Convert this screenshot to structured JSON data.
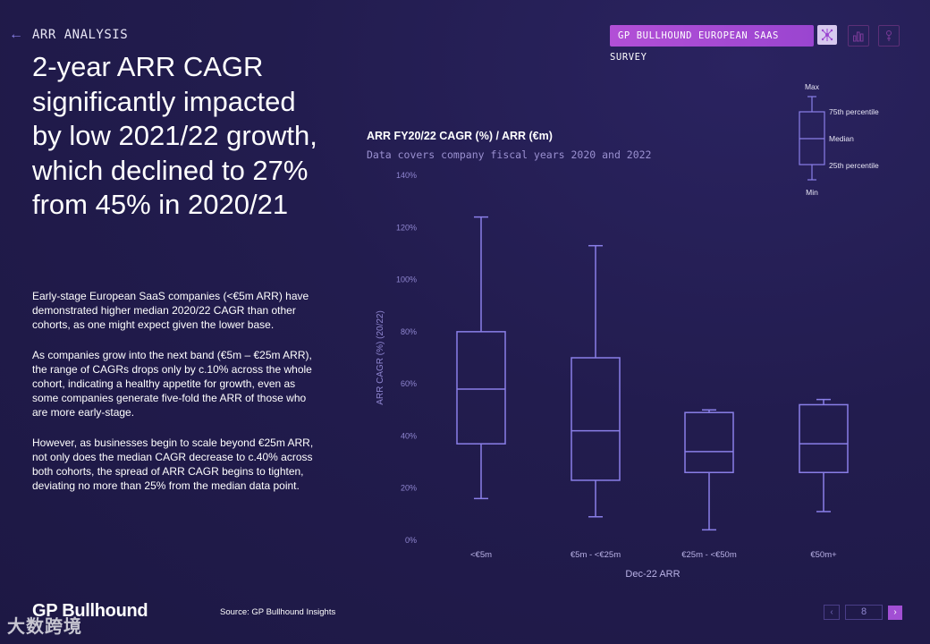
{
  "nav": {
    "back_icon": "←",
    "section_label": "ARR ANALYSIS"
  },
  "headline": "2-year ARR CAGR significantly impacted by low 2021/22 growth, which declined to 27% from 45% in 2020/21",
  "body": [
    "Early-stage European SaaS companies (<€5m ARR) have demonstrated higher median 2020/22 CAGR than other cohorts, as one might expect given the lower base.",
    "As companies grow into the next band (€5m – €25m ARR), the range of CAGRs drops only by c.10% across the whole cohort, indicating a healthy appetite for growth, even as some companies generate five-fold the ARR of those who are more early-stage.",
    "However, as businesses begin to scale beyond €25m ARR, not only does the median CAGR decrease to c.40% across both cohorts, the spread of ARR CAGR begins to tighten, deviating no more than 25% from the median data point."
  ],
  "topbar": {
    "survey_label": "GP BULLHOUND EUROPEAN SAAS SURVEY",
    "icons": [
      "share-icon",
      "bar-chart-icon",
      "tool-icon"
    ]
  },
  "colors": {
    "accent": "#8a7fe8",
    "button": "#b24fd6",
    "box": "#8a7fe8"
  },
  "chart_data": {
    "type": "boxplot",
    "title": "ARR FY20/22 CAGR (%) / ARR (€m)",
    "subtitle": "Data covers company fiscal years 2020 and 2022",
    "xlabel": "Dec-22 ARR",
    "ylabel": "ARR CAGR (%) (20/22)",
    "ylim": [
      0,
      140
    ],
    "yticks": [
      "0%",
      "20%",
      "40%",
      "60%",
      "80%",
      "100%",
      "120%",
      "140%"
    ],
    "categories": [
      "<€5m",
      "€5m - <€25m",
      "€25m - <€50m",
      "€50m+"
    ],
    "series": [
      {
        "name": "<€5m",
        "min": 16,
        "q1": 37,
        "median": 58,
        "q3": 80,
        "max": 124
      },
      {
        "name": "€5m - <€25m",
        "min": 9,
        "q1": 23,
        "median": 42,
        "q3": 70,
        "max": 113
      },
      {
        "name": "€25m - <€50m",
        "min": 4,
        "q1": 26,
        "median": 34,
        "q3": 49,
        "max": 50
      },
      {
        "name": "€50m+",
        "min": 11,
        "q1": 26,
        "median": 37,
        "q3": 52,
        "max": 54
      }
    ],
    "legend": {
      "max": "Max",
      "p75": "75th percentile",
      "median": "Median",
      "p25": "25th percentile",
      "min": "Min"
    }
  },
  "footer": {
    "logo": "GP Bullhound",
    "source": "Source: GP Bullhound Insights",
    "watermark": "大数跨境",
    "page_number": "8",
    "prev_icon": "‹",
    "next_icon": "›"
  }
}
